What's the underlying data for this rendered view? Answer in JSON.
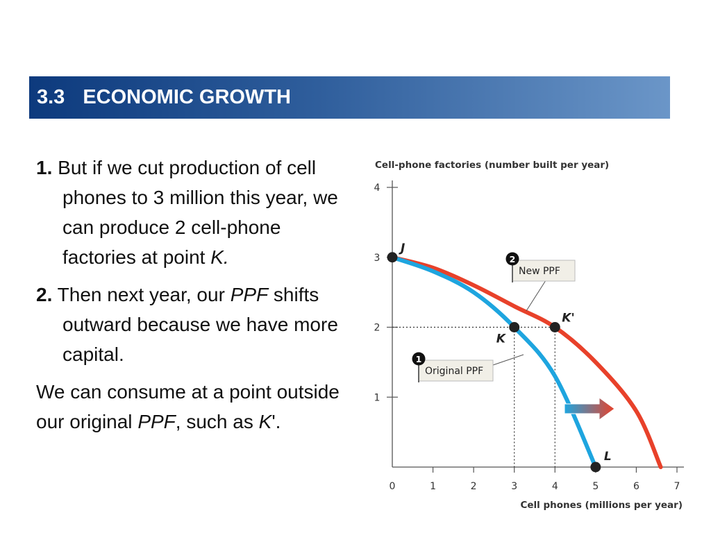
{
  "header": {
    "number": "3.3",
    "title": "ECONOMIC GROWTH"
  },
  "text": {
    "item1": {
      "num": "1.",
      "pre": "But if we cut production of cell phones to 3 million this year, we can produce 2 cell-phone factories at point ",
      "italic": "K",
      "post": "."
    },
    "item2": {
      "num": "2.",
      "pre": "Then next year, our ",
      "italic": "PPF",
      "post": " shifts outward because we have more capital."
    },
    "para": {
      "pre": "We can consume at a point outside our original ",
      "italic1": "PPF",
      "mid": ", such as ",
      "italic2": "K",
      "post": "'."
    }
  },
  "colors": {
    "header_start": "#0d3a7d",
    "header_end": "#6b96c8",
    "original_ppf": "#1ea5df",
    "new_ppf": "#e8412a"
  },
  "chart_data": {
    "type": "line",
    "ylabel": "Cell-phone factories (number built per year)",
    "xlabel": "Cell phones (millions per year)",
    "xlim": [
      0,
      7
    ],
    "ylim": [
      0,
      4
    ],
    "xticks": [
      0,
      1,
      2,
      3,
      4,
      5,
      6,
      7
    ],
    "yticks": [
      1,
      2,
      3,
      4
    ],
    "series": [
      {
        "name": "Original PPF",
        "marker_number": "1",
        "color": "#1ea5df",
        "x": [
          0,
          1,
          2,
          3,
          4,
          5
        ],
        "y": [
          3,
          2.8,
          2.5,
          2,
          1.3,
          0
        ]
      },
      {
        "name": "New PPF",
        "marker_number": "2",
        "color": "#e8412a",
        "x": [
          0,
          1,
          2,
          3,
          4,
          5,
          6,
          6.6
        ],
        "y": [
          3,
          2.85,
          2.6,
          2.3,
          2,
          1.5,
          0.8,
          0
        ]
      }
    ],
    "points": [
      {
        "label": "J",
        "x": 0,
        "y": 3
      },
      {
        "label": "K",
        "x": 3,
        "y": 2
      },
      {
        "label": "K'",
        "x": 4,
        "y": 2
      },
      {
        "label": "L",
        "x": 5,
        "y": 0
      }
    ],
    "annotation": "outward shift arrow"
  }
}
